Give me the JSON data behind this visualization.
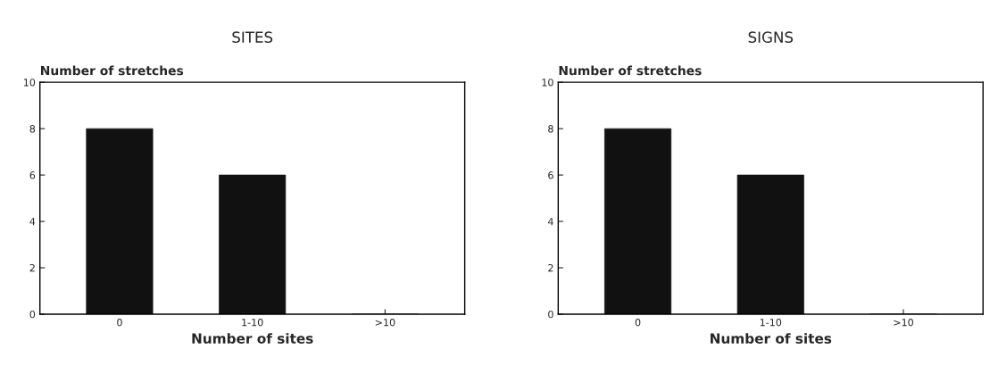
{
  "chart_data": [
    {
      "type": "bar",
      "title": "SITES",
      "ylabel": "Number of stretches",
      "xlabel": "Number of sites",
      "categories": [
        "0",
        "1-10",
        ">10"
      ],
      "values": [
        8,
        6,
        0
      ],
      "color": "#111111",
      "ylim": [
        0,
        10
      ],
      "yticks": [
        0,
        2,
        4,
        6,
        8,
        10
      ],
      "grid": false
    },
    {
      "type": "bar",
      "title": "SIGNS",
      "ylabel": "Number of stretches",
      "xlabel": "Number of sites",
      "categories": [
        "0",
        "1-10",
        ">10"
      ],
      "values": [
        8,
        6,
        0
      ],
      "color": "#111111",
      "ylim": [
        0,
        10
      ],
      "yticks": [
        0,
        2,
        4,
        6,
        8,
        10
      ],
      "grid": false
    }
  ]
}
